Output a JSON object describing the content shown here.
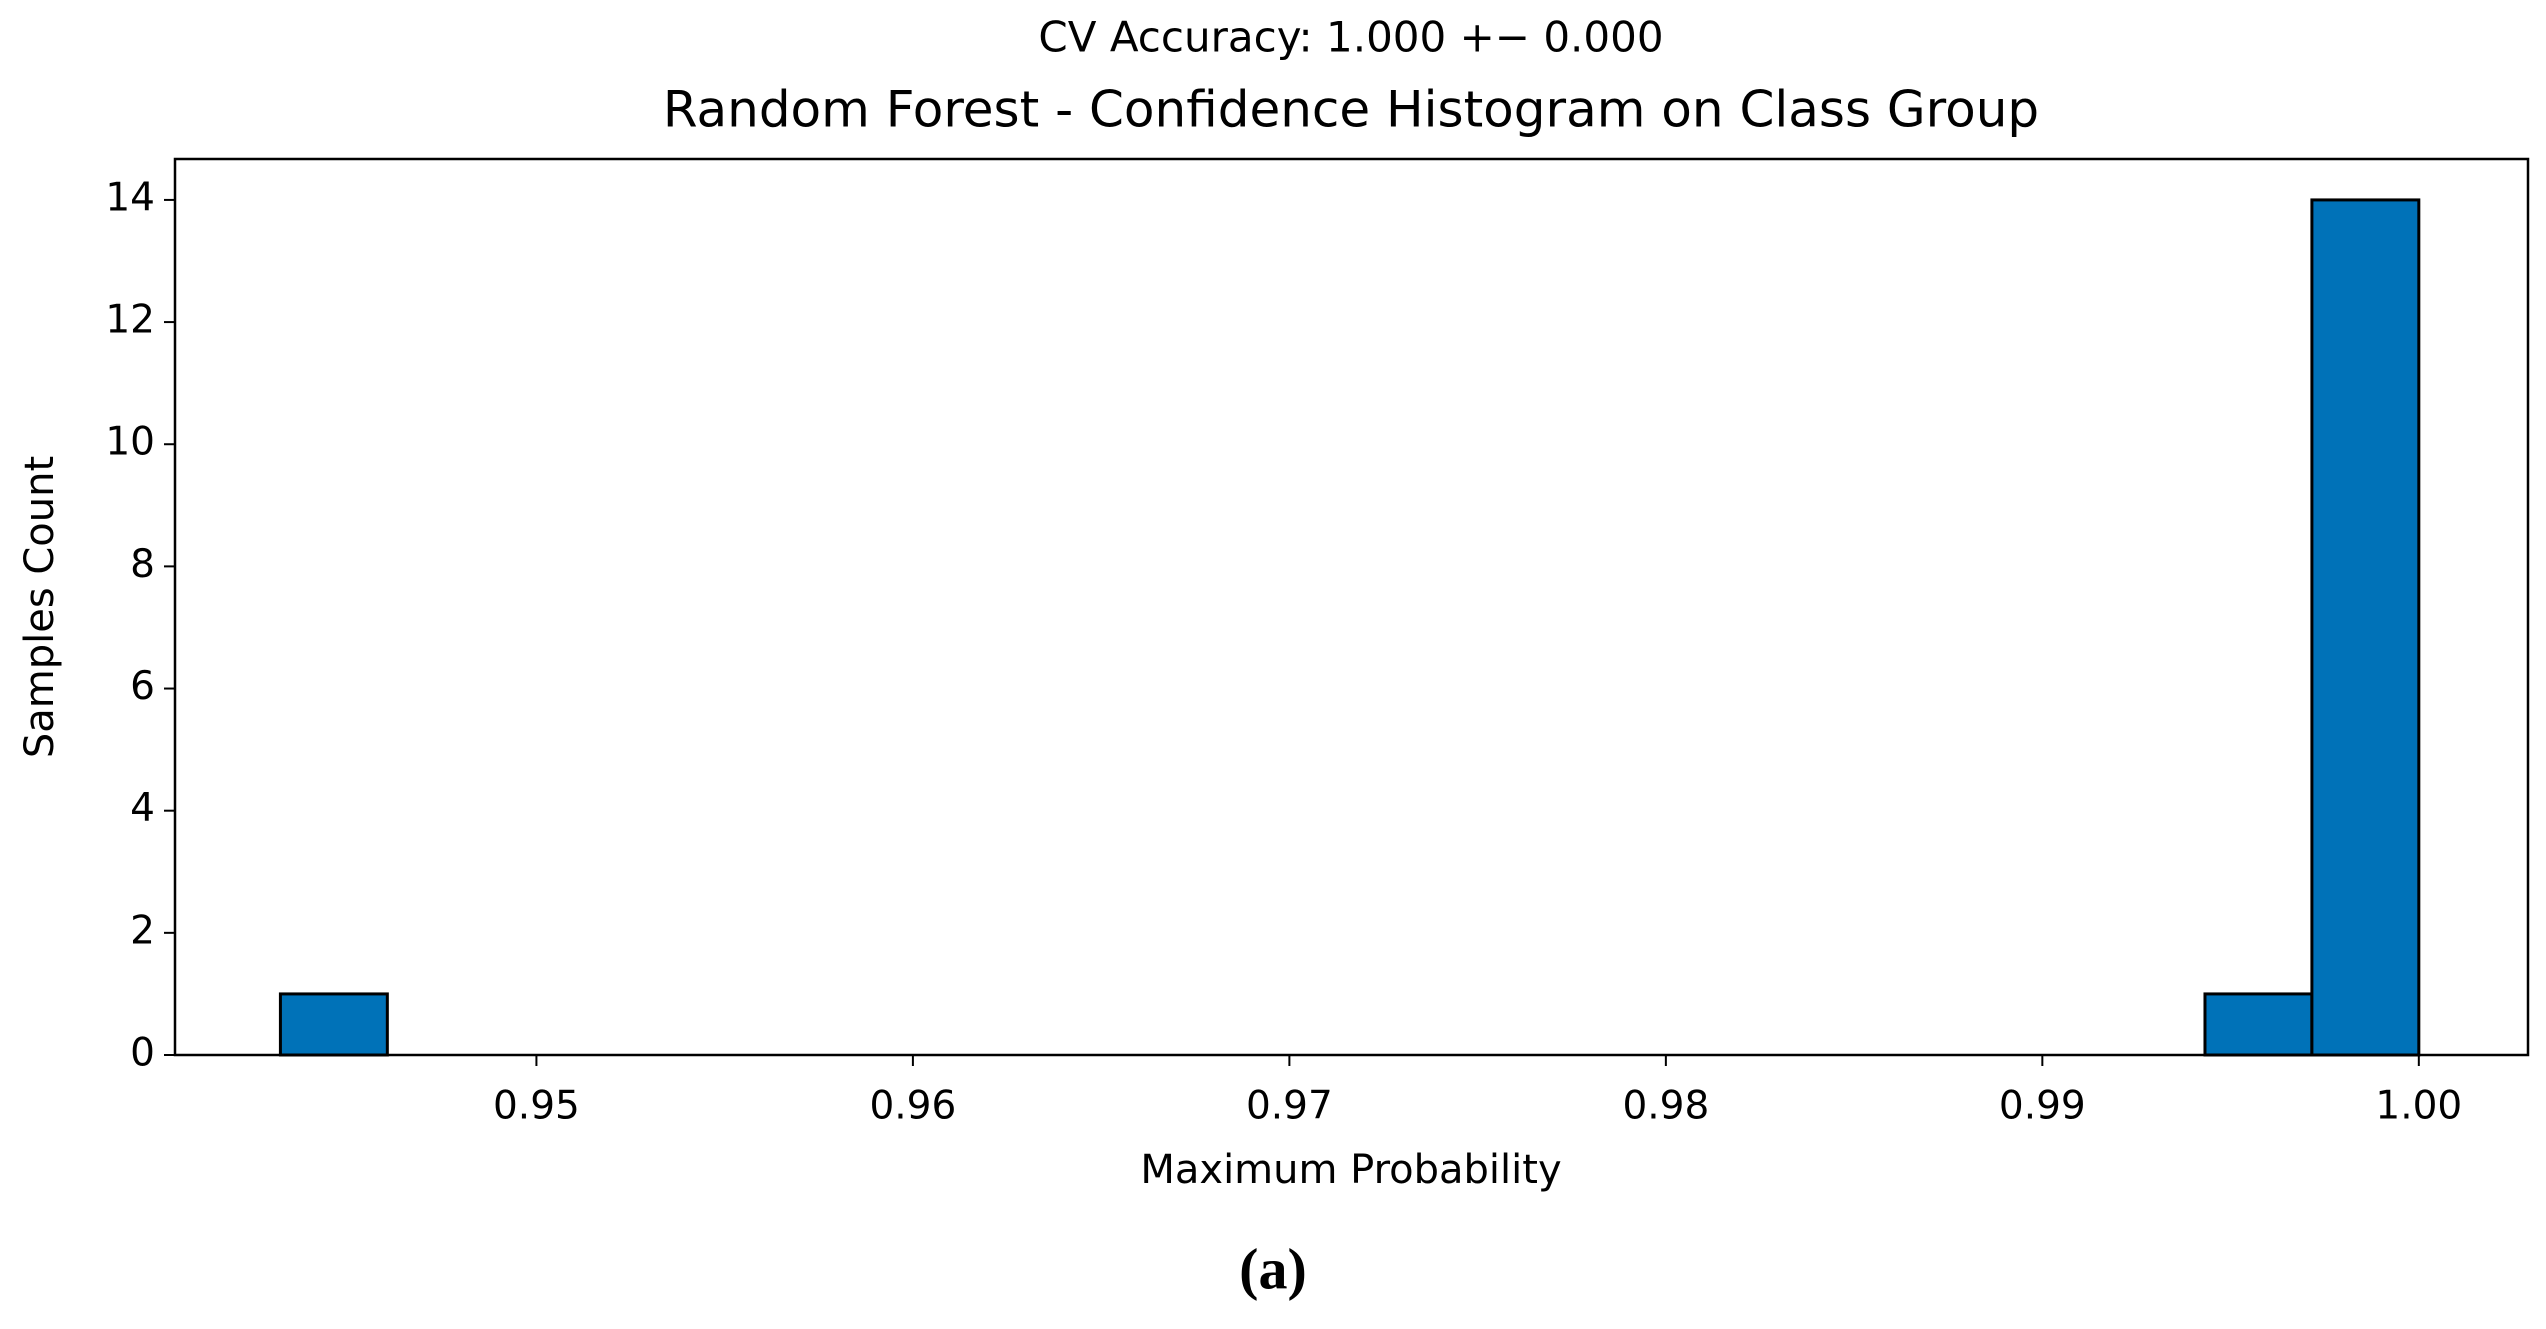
{
  "chart_data": {
    "type": "histogram",
    "subtitle": "CV Accuracy: 1.000 +− 0.000",
    "title": "Random Forest - Confidence Histogram on Class Group",
    "x_label": "Maximum Probability",
    "y_label": "Samples Count",
    "bins": [
      0.9432,
      0.94604,
      0.94888,
      0.95172,
      0.95456,
      0.9574,
      0.96024,
      0.96308,
      0.96592,
      0.96876,
      0.9716,
      0.97444,
      0.97728,
      0.98012,
      0.98296,
      0.9858,
      0.98864,
      0.99148,
      0.99432,
      0.99716,
      1.0
    ],
    "values": [
      1,
      0,
      0,
      0,
      0,
      0,
      0,
      0,
      0,
      0,
      0,
      0,
      0,
      0,
      0,
      0,
      0,
      0,
      1,
      14
    ],
    "color": "#0072b8",
    "xlim": [
      0.9404,
      1.0029
    ],
    "ylim": [
      0,
      14.67
    ],
    "xticks": [
      0.95,
      0.96,
      0.97,
      0.98,
      0.99,
      {
        "value": 1,
        "label": "1.00"
      }
    ],
    "yticks": [
      0,
      2,
      4,
      6,
      8,
      10,
      12,
      14
    ]
  },
  "caption": "(a)"
}
